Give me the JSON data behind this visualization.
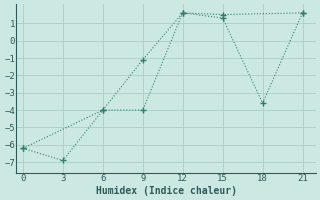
{
  "series1_x": [
    0,
    3,
    6,
    9,
    12,
    15,
    21
  ],
  "series1_y": [
    -6.2,
    -6.9,
    -4.0,
    -1.1,
    1.6,
    1.5,
    1.6
  ],
  "series2_x": [
    0,
    6,
    9,
    12,
    15,
    18,
    21
  ],
  "series2_y": [
    -6.2,
    -4.0,
    -4.0,
    1.6,
    1.3,
    -3.6,
    1.6
  ],
  "line_color": "#2e7d6e",
  "bg_color": "#cce8e3",
  "grid_color": "#aacecc",
  "xlabel": "Humidex (Indice chaleur)",
  "xticks": [
    0,
    3,
    6,
    9,
    12,
    15,
    18,
    21
  ],
  "yticks": [
    -7,
    -6,
    -5,
    -4,
    -3,
    -2,
    -1,
    0,
    1
  ],
  "ylim": [
    -7.6,
    2.1
  ],
  "xlim": [
    -0.5,
    22.0
  ],
  "font_color": "#2e5a5a",
  "marker": "+"
}
